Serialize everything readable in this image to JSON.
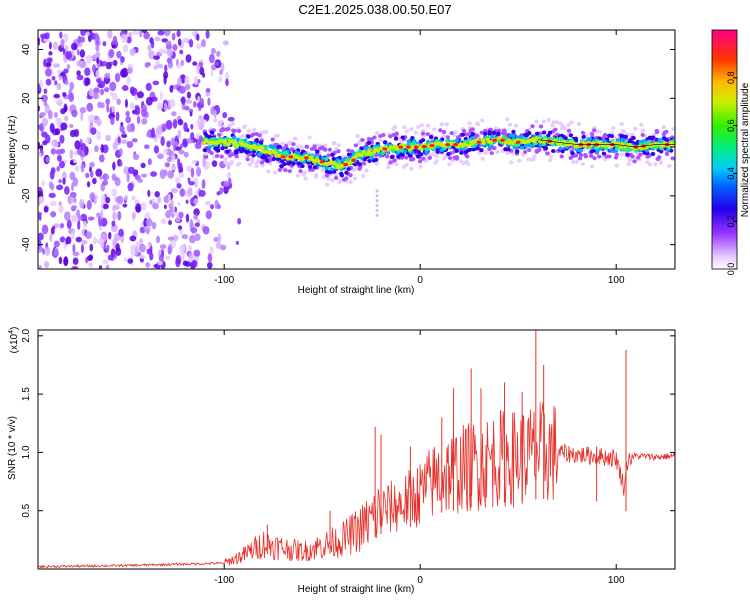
{
  "title": "C2E1.2025.038.00.50.E07",
  "chart_data": [
    {
      "type": "heatmap",
      "xlabel": "Height of straight line (km)",
      "ylabel": "Frequency (Hz)",
      "xlim": [
        -195,
        130
      ],
      "ylim": [
        -50,
        48
      ],
      "xticks": [
        -100,
        0,
        100
      ],
      "yticks": [
        -40,
        -20,
        0,
        20,
        40
      ],
      "colorbar": {
        "label": "Normalized spectral amplitude",
        "range": [
          0,
          1
        ],
        "ticks": [
          0.0,
          0.2,
          0.4,
          0.6,
          0.8
        ]
      },
      "ridge": [
        {
          "x": -110,
          "y": 2
        },
        {
          "x": -100,
          "y": 2
        },
        {
          "x": -90,
          "y": 1
        },
        {
          "x": -80,
          "y": -1
        },
        {
          "x": -70,
          "y": -4
        },
        {
          "x": -60,
          "y": -4
        },
        {
          "x": -50,
          "y": -6
        },
        {
          "x": -40,
          "y": -8
        },
        {
          "x": -35,
          "y": -6
        },
        {
          "x": -30,
          "y": -3
        },
        {
          "x": -20,
          "y": -1
        },
        {
          "x": -10,
          "y": 0
        },
        {
          "x": 0,
          "y": 0
        },
        {
          "x": 10,
          "y": 1
        },
        {
          "x": 20,
          "y": 1
        },
        {
          "x": 30,
          "y": 2
        },
        {
          "x": 40,
          "y": 3
        },
        {
          "x": 50,
          "y": 2
        },
        {
          "x": 60,
          "y": 3
        },
        {
          "x": 70,
          "y": 2
        },
        {
          "x": 80,
          "y": 1
        },
        {
          "x": 90,
          "y": 1
        },
        {
          "x": 100,
          "y": 1
        },
        {
          "x": 110,
          "y": 0
        },
        {
          "x": 120,
          "y": 1
        },
        {
          "x": 130,
          "y": 1
        }
      ]
    },
    {
      "type": "line",
      "xlabel": "Height of straight line (km)",
      "ylabel": "SNR (10 * v/v)",
      "y_multiplier": "(x10",
      "y_multiplier_exp": "4",
      "y_multiplier_close": ")",
      "xlim": [
        -195,
        130
      ],
      "ylim": [
        0,
        2.05
      ],
      "xticks": [
        -100,
        0,
        100
      ],
      "yticks": [
        0.5,
        1.0,
        1.5,
        2.0
      ],
      "ytick_labels": [
        "0.5",
        "1.0",
        "1.5",
        "2.0"
      ],
      "color": "#e8302a",
      "series": [
        {
          "x": [
            -195,
            -150,
            -100,
            -90,
            -80,
            -70,
            -60,
            -50,
            -40,
            -30,
            -20,
            -10,
            0,
            10,
            20,
            30,
            40,
            50,
            60,
            70,
            80,
            90,
            100,
            104,
            106,
            110,
            120,
            130
          ],
          "y": [
            0.02,
            0.03,
            0.05,
            0.12,
            0.22,
            0.18,
            0.15,
            0.2,
            0.25,
            0.35,
            0.5,
            0.55,
            0.65,
            0.8,
            0.85,
            0.9,
            0.95,
            0.95,
            1.0,
            1.0,
            0.98,
            0.97,
            0.95,
            0.7,
            0.95,
            0.97,
            0.96,
            0.97
          ]
        }
      ],
      "spikes": [
        {
          "x": -78,
          "y": 0.38
        },
        {
          "x": -46,
          "y": 0.5
        },
        {
          "x": -23,
          "y": 1.22
        },
        {
          "x": -20,
          "y": 1.15
        },
        {
          "x": -5,
          "y": 1.05
        },
        {
          "x": 11,
          "y": 1.3
        },
        {
          "x": 17,
          "y": 1.55
        },
        {
          "x": 26,
          "y": 1.72
        },
        {
          "x": 31,
          "y": 1.55
        },
        {
          "x": 43,
          "y": 1.6
        },
        {
          "x": 52,
          "y": 1.52
        },
        {
          "x": 59,
          "y": 2.05
        },
        {
          "x": 63,
          "y": 1.75
        },
        {
          "x": 90,
          "y": 1.05
        },
        {
          "x": 105,
          "y": 1.88
        }
      ]
    }
  ]
}
